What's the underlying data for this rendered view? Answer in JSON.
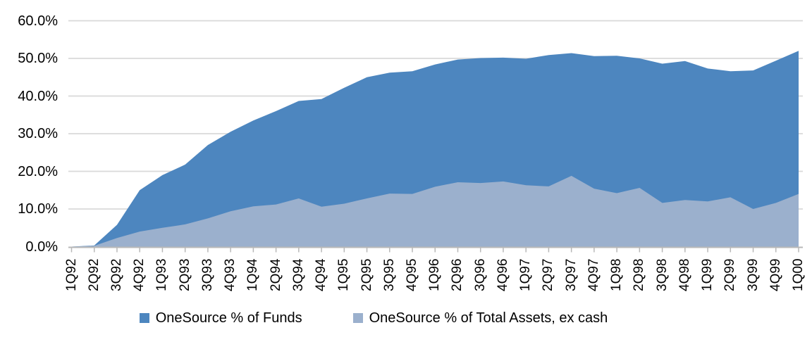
{
  "chart_data": {
    "type": "area",
    "title": "",
    "xlabel": "",
    "ylabel": "",
    "stacked": false,
    "grid": "horizontal",
    "legend_position": "bottom",
    "background_color": "#ffffff",
    "gridline_color": "#d9d9d9",
    "axis_color": "#b8b8b8",
    "text_color": "#000000",
    "ylim": [
      0,
      60
    ],
    "ytick_step": 10,
    "ytick_labels": [
      "0.0%",
      "10.0%",
      "20.0%",
      "30.0%",
      "40.0%",
      "50.0%",
      "60.0%"
    ],
    "categories": [
      "1Q92",
      "2Q92",
      "3Q92",
      "4Q92",
      "1Q93",
      "2Q93",
      "3Q93",
      "4Q93",
      "1Q94",
      "2Q94",
      "3Q94",
      "4Q94",
      "1Q95",
      "2Q95",
      "3Q95",
      "4Q95",
      "1Q96",
      "2Q96",
      "3Q96",
      "4Q96",
      "1Q97",
      "2Q97",
      "3Q97",
      "4Q97",
      "1Q98",
      "2Q98",
      "3Q98",
      "4Q98",
      "1Q99",
      "2Q99",
      "3Q99",
      "4Q99",
      "1Q00"
    ],
    "series": [
      {
        "name": "OneSource % of Funds",
        "color": "#4d86bf",
        "values": [
          0,
          0.3,
          5.8,
          15.0,
          19.0,
          21.8,
          27.0,
          30.5,
          33.5,
          36.0,
          38.7,
          39.2,
          42.2,
          45.0,
          46.2,
          46.6,
          48.4,
          49.7,
          50.1,
          50.2,
          49.9,
          50.9,
          51.4,
          50.6,
          50.7,
          50.0,
          48.6,
          49.3,
          47.3,
          46.6,
          46.8,
          49.4,
          52.0
        ]
      },
      {
        "name": "OneSource % of Total Assets, ex cash",
        "color": "#9bb0cd",
        "values": [
          0,
          0.2,
          2.3,
          4.0,
          5.0,
          5.9,
          7.5,
          9.4,
          10.7,
          11.2,
          12.8,
          10.6,
          11.4,
          12.8,
          14.1,
          14.0,
          15.9,
          17.1,
          16.9,
          17.3,
          16.3,
          16.0,
          18.8,
          15.4,
          14.2,
          15.6,
          11.6,
          12.4,
          12.0,
          13.1,
          10.0,
          11.6,
          14.0
        ]
      }
    ]
  }
}
